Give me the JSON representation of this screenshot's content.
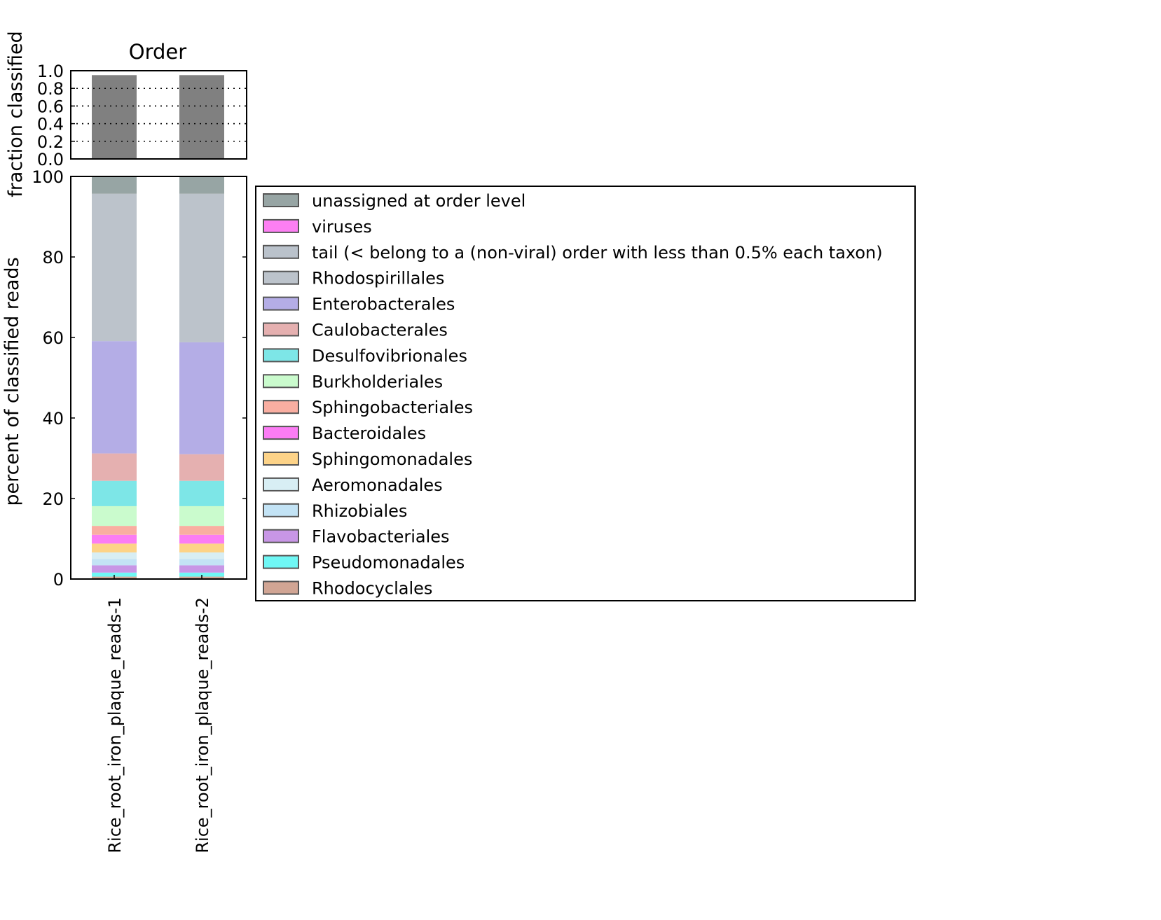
{
  "chart_data": [
    {
      "type": "bar",
      "title": "Order",
      "ylabel": "fraction classified",
      "ylim": [
        0,
        1.0
      ],
      "yticks": [
        "0.0",
        "0.2",
        "0.4",
        "0.6",
        "0.8",
        "1.0"
      ],
      "grid": "horizontal dotted",
      "categories": [
        "Rice_root_iron_plaque_reads-1",
        "Rice_root_iron_plaque_reads-2"
      ],
      "values": [
        0.95,
        0.95
      ],
      "bar_color": "#808080"
    },
    {
      "type": "stacked-bar",
      "ylabel": "percent of classified reads",
      "ylim": [
        0,
        100
      ],
      "yticks": [
        "0",
        "20",
        "40",
        "60",
        "80",
        "100"
      ],
      "legend_position": "right",
      "categories": [
        "Rice_root_iron_plaque_reads-1",
        "Rice_root_iron_plaque_reads-2"
      ],
      "series": [
        {
          "name": "Rhodocyclales",
          "color": "#d1a594",
          "values": [
            0.6,
            0.6
          ]
        },
        {
          "name": "Pseudomonadales",
          "color": "#6ff7f5",
          "values": [
            1.0,
            1.0
          ]
        },
        {
          "name": "Flavobacteriales",
          "color": "#c896e6",
          "values": [
            1.8,
            1.8
          ]
        },
        {
          "name": "Rhizobiales",
          "color": "#c3e3f5",
          "values": [
            1.6,
            1.6
          ]
        },
        {
          "name": "Aeromonadales",
          "color": "#d8eef4",
          "values": [
            1.6,
            1.6
          ]
        },
        {
          "name": "Sphingomonadales",
          "color": "#fdd388",
          "values": [
            2.2,
            2.2
          ]
        },
        {
          "name": "Bacteroidales",
          "color": "#fb7cf4",
          "values": [
            2.2,
            2.2
          ]
        },
        {
          "name": "Sphingobacteriales",
          "color": "#f9aea1",
          "values": [
            2.2,
            2.2
          ]
        },
        {
          "name": "Burkholderiales",
          "color": "#cafbcd",
          "values": [
            4.9,
            4.9
          ]
        },
        {
          "name": "Desulfovibrionales",
          "color": "#7de6e7",
          "values": [
            6.3,
            6.3
          ]
        },
        {
          "name": "Caulobacterales",
          "color": "#e5b0b0",
          "values": [
            6.8,
            6.6
          ]
        },
        {
          "name": "Enterobacterales",
          "color": "#b4ade6",
          "values": [
            27.9,
            27.8
          ]
        },
        {
          "name": "Rhodospirillales",
          "color": "#bcc3cb",
          "values": [
            36.6,
            36.9
          ]
        },
        {
          "name": "tail (< belong to a (non-viral) order with less than 0.5% each taxon)",
          "color": "#bac2cb",
          "values": [
            0.0,
            0.0
          ]
        },
        {
          "name": "viruses",
          "color": "#fd7ff3",
          "values": [
            0.0,
            0.0
          ]
        },
        {
          "name": "unassigned at order level",
          "color": "#97a5a4",
          "values": [
            4.3,
            4.3
          ]
        }
      ]
    }
  ]
}
